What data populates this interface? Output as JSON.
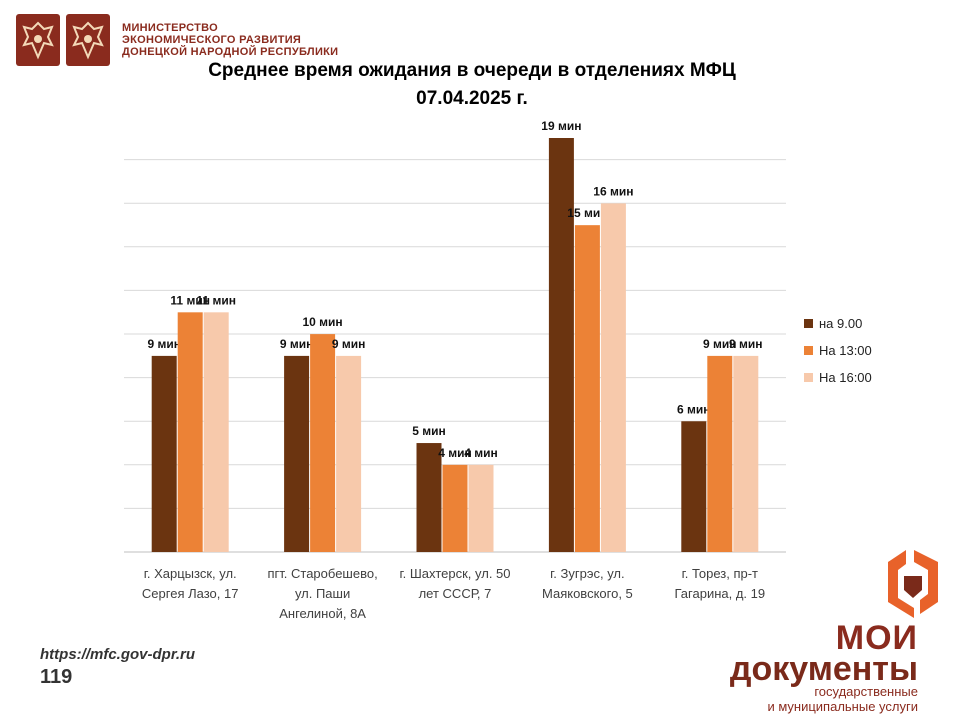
{
  "header": {
    "ministry_lines": [
      "МИНИСТЕРСТВО",
      "ЭКОНОМИЧЕСКОГО РАЗВИТИЯ",
      "ДОНЕЦКОЙ НАРОДНОЙ РЕСПУБЛИКИ"
    ]
  },
  "footer": {
    "url": "https://mfc.gov-dpr.ru",
    "page_number": "119",
    "brand_line1": "МОИ",
    "brand_line2": "документы",
    "brand_line3": "государственные",
    "brand_line4": "и муниципальные услуги"
  },
  "colors": {
    "brand": "#8a2b1e",
    "s1": "#6b3410",
    "s2": "#ec8236",
    "s3": "#f7c9ab",
    "logo_orange": "#e8622a",
    "logo_dark": "#7a2a1a"
  },
  "icons": [
    "emblem-icon",
    "emblem-icon",
    "mfc-logo-icon"
  ],
  "chart_data": {
    "type": "bar",
    "title": "Среднее время ожидания в очереди в отделениях МФЦ",
    "subtitle": "07.04.2025  г.",
    "categories": [
      "г. Харцызск, ул. Сергея Лазо, 17",
      "пгт. Старобешево, ул. Паши Ангелиной, 8А",
      "г. Шахтерск, ул. 50 лет СССР, 7",
      "г. Зугрэс, ул. Маяковского, 5",
      "г. Торез, пр-т Гагарина, д. 19"
    ],
    "category_lines": [
      [
        "г. Харцызск, ул.",
        "Сергея Лазо, 17"
      ],
      [
        "пгт. Старобешево,",
        "ул. Паши",
        "Ангелиной, 8А"
      ],
      [
        "г. Шахтерск, ул. 50",
        "лет СССР, 7"
      ],
      [
        "г. Зугрэс, ул.",
        "Маяковского, 5"
      ],
      [
        "г. Торез, пр-т",
        "Гагарина, д. 19"
      ]
    ],
    "series": [
      {
        "name": "на 9.00",
        "values": [
          9,
          9,
          5,
          19,
          6
        ],
        "labels": [
          "9 мин",
          "9 мин",
          "5 мин",
          "19 мин",
          "6 мин"
        ]
      },
      {
        "name": "На 13:00",
        "values": [
          11,
          10,
          4,
          15,
          9
        ],
        "labels": [
          "11 мин",
          "10 мин",
          "4 мин",
          "15 мин",
          "9 мин"
        ]
      },
      {
        "name": "На 16:00",
        "values": [
          11,
          9,
          4,
          16,
          9
        ],
        "labels": [
          "11 мин",
          "9 мин",
          "4 мин",
          "16 мин",
          "9 мин"
        ]
      }
    ],
    "ylim": [
      0,
      19
    ],
    "y_gridlines": 9,
    "grid": true,
    "legend": "right"
  }
}
